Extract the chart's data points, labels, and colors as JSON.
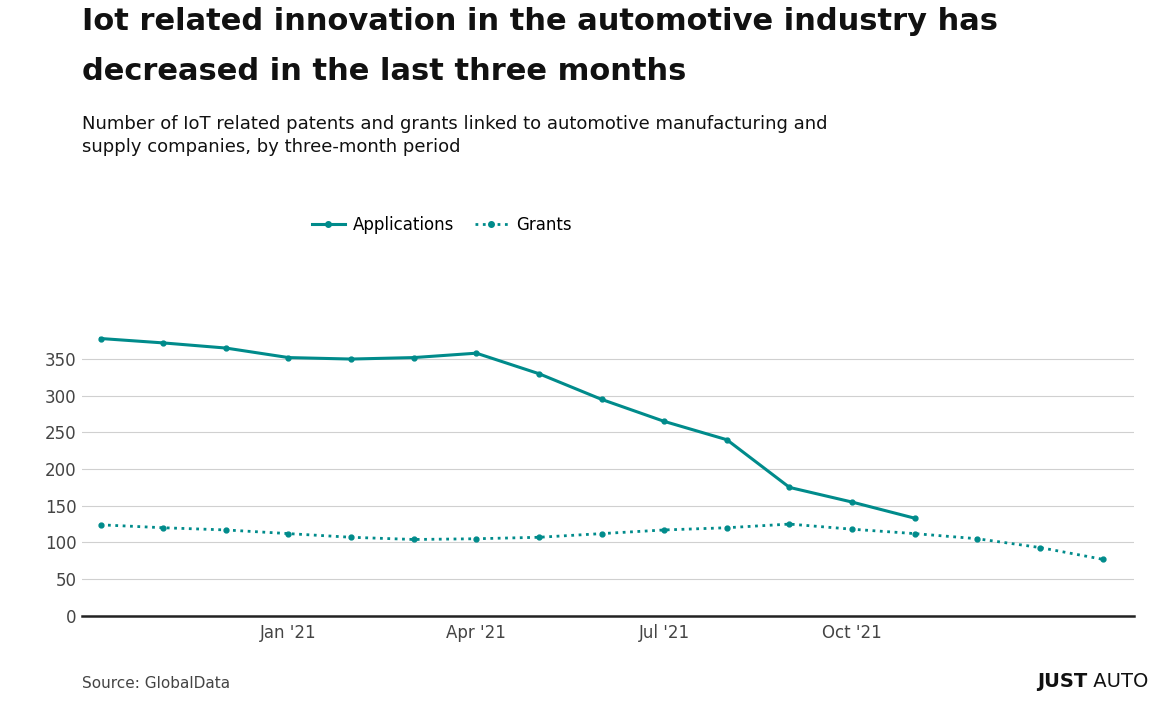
{
  "title_line1": "Iot related innovation in the automotive industry has",
  "title_line2": "decreased in the last three months",
  "subtitle": "Number of IoT related patents and grants linked to automotive manufacturing and\nsupply companies, by three-month period",
  "source": "Source: GlobalData",
  "brand": "JUST AUTO",
  "line_color": "#008B8B",
  "applications": [
    378,
    372,
    365,
    352,
    350,
    352,
    358,
    330,
    295,
    265,
    240,
    175,
    155,
    133
  ],
  "grants": [
    124,
    120,
    117,
    112,
    107,
    104,
    105,
    107,
    112,
    117,
    120,
    125,
    118,
    112,
    105,
    93,
    77
  ],
  "x_applications": [
    0,
    1,
    2,
    3,
    4,
    5,
    6,
    7,
    8,
    9,
    10,
    11,
    12,
    13
  ],
  "x_grants": [
    0,
    1,
    2,
    3,
    4,
    5,
    6,
    7,
    8,
    9,
    10,
    11,
    12,
    13,
    14,
    15,
    16
  ],
  "xtick_positions": [
    3,
    6,
    9,
    12
  ],
  "xtick_labels": [
    "Jan '21",
    "Apr '21",
    "Jul '21",
    "Oct '21"
  ],
  "ytick_positions": [
    0,
    50,
    100,
    150,
    200,
    250,
    300,
    350
  ],
  "ylim": [
    0,
    410
  ],
  "xlim": [
    -0.3,
    16.5
  ],
  "legend_labels": [
    "Applications",
    "Grants"
  ],
  "background_color": "#ffffff",
  "grid_color": "#d0d0d0",
  "title_fontsize": 22,
  "subtitle_fontsize": 13,
  "legend_fontsize": 12,
  "axis_fontsize": 12
}
